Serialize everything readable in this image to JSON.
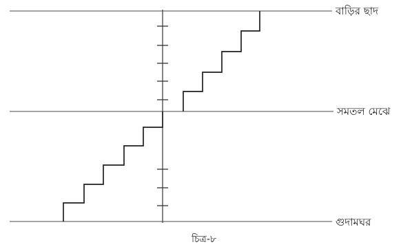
{
  "diagram": {
    "levels": {
      "roof": "বাড়ির ছাদ",
      "ground": "সমতল মেঝে",
      "basement": "গুদামঘর"
    },
    "caption": "চিত্র-৮",
    "upper_staircase_steps": 5,
    "lower_staircase_steps": 5,
    "ticks_above_ground": 5,
    "ticks_below_ground": 3
  }
}
